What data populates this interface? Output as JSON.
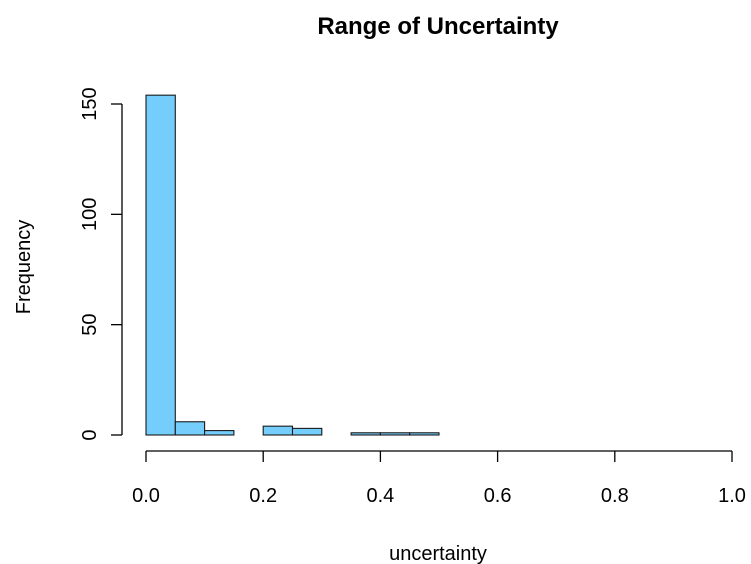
{
  "chart_data": {
    "type": "bar",
    "subtype": "histogram",
    "title": "Range of Uncertainty",
    "xlabel": "uncertainty",
    "ylabel": "Frequency",
    "bin_width": 0.05,
    "bins": [
      {
        "x0": 0.0,
        "x1": 0.05,
        "count": 154
      },
      {
        "x0": 0.05,
        "x1": 0.1,
        "count": 6
      },
      {
        "x0": 0.1,
        "x1": 0.15,
        "count": 2
      },
      {
        "x0": 0.15,
        "x1": 0.2,
        "count": 0
      },
      {
        "x0": 0.2,
        "x1": 0.25,
        "count": 4
      },
      {
        "x0": 0.25,
        "x1": 0.3,
        "count": 3
      },
      {
        "x0": 0.3,
        "x1": 0.35,
        "count": 0
      },
      {
        "x0": 0.35,
        "x1": 0.4,
        "count": 1
      },
      {
        "x0": 0.4,
        "x1": 0.45,
        "count": 1
      },
      {
        "x0": 0.45,
        "x1": 0.5,
        "count": 1
      }
    ],
    "xlim": [
      0,
      1.0
    ],
    "ylim": [
      0,
      150
    ],
    "xticks": [
      0.0,
      0.2,
      0.4,
      0.6,
      0.8,
      1.0
    ],
    "xtick_labels": [
      "0.0",
      "0.2",
      "0.4",
      "0.6",
      "0.8",
      "1.0"
    ],
    "yticks": [
      0,
      50,
      100,
      150
    ],
    "ytick_labels": [
      "0",
      "50",
      "100",
      "150"
    ],
    "grid": false,
    "legend": "none",
    "colors": {
      "bar_fill": "#74CDFB",
      "bar_stroke": "#1a1a1a"
    }
  }
}
